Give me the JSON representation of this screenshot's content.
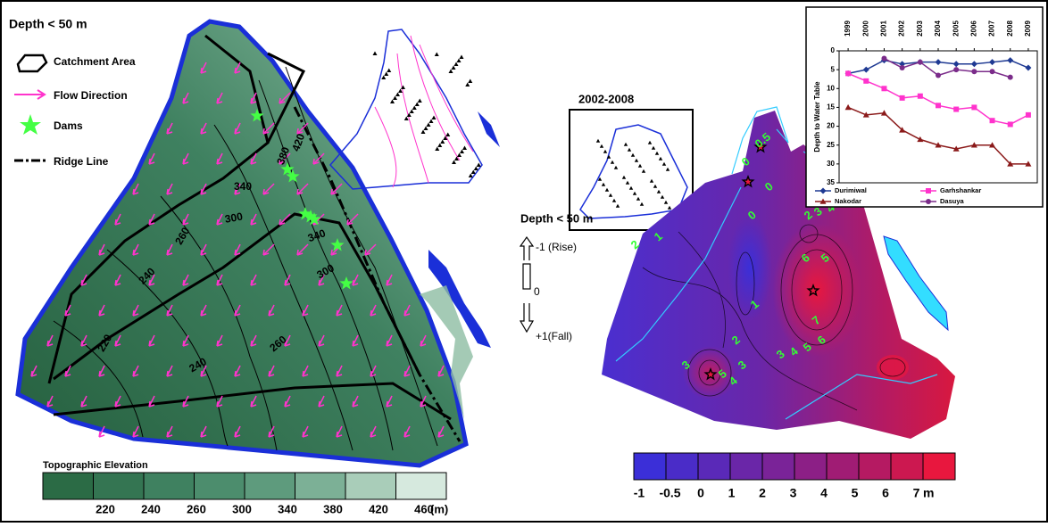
{
  "left_panel": {
    "title": "Depth < 50 m",
    "legend": [
      "Catchment Area",
      "Flow Direction",
      "Dams",
      "Ridge Line"
    ],
    "contour_labels": [
      "420",
      "380",
      "340",
      "300",
      "260",
      "240",
      "220",
      "240",
      "260",
      "300",
      "340"
    ],
    "colorbar": {
      "title": "Topographic Elevation",
      "labels": [
        "220",
        "240",
        "260",
        "300",
        "340",
        "380",
        "420",
        "460"
      ],
      "unit": "(m)",
      "colors": [
        "#2b6b45",
        "#347552",
        "#3f8160",
        "#4c8d6d",
        "#5e9b7d",
        "#7cb096",
        "#a9cdb9",
        "#d6e9de"
      ]
    }
  },
  "center": {
    "inset_title": "2002-2008",
    "depth_label": "Depth < 50 m",
    "rise": "-1 (Rise)",
    "zero": "0",
    "fall": "+1(Fall)"
  },
  "right_panel": {
    "contour_labels": [
      "0.5",
      "0",
      "0",
      "0",
      "2",
      "1",
      "1",
      "2",
      "3",
      "4",
      "6",
      "5",
      "7",
      "6",
      "5",
      "4",
      "3",
      "2",
      "3",
      "5",
      "3",
      "4"
    ],
    "colorbar": {
      "labels": [
        "-1",
        "-0.5",
        "0",
        "1",
        "2",
        "3",
        "4",
        "5",
        "6",
        "7"
      ],
      "unit": "m",
      "colors": [
        "#3b2fd8",
        "#4a2cc8",
        "#5a29b8",
        "#6a26a8",
        "#7a2398",
        "#8c1f86",
        "#a01c74",
        "#b51a62",
        "#cc1850",
        "#e8173e"
      ]
    }
  },
  "inset_chart": {
    "type": "line",
    "y_label": "Depth to Water Table",
    "y_inverted": true,
    "categories": [
      "1999",
      "2000",
      "2001",
      "2002",
      "2003",
      "2004",
      "2005",
      "2006",
      "2007",
      "2008",
      "2009"
    ],
    "ylim": [
      0,
      35
    ],
    "yticks": [
      0,
      5,
      10,
      15,
      20,
      25,
      30,
      35
    ],
    "series": [
      {
        "name": "Durimiwal",
        "color": "#1f3a93",
        "marker": "diamond",
        "values": [
          6,
          5,
          2.5,
          3.5,
          3,
          3,
          3.5,
          3.5,
          3,
          2.5,
          4.5
        ]
      },
      {
        "name": "Garhshankar",
        "color": "#ff33cc",
        "marker": "square",
        "values": [
          6,
          8,
          10,
          12.5,
          12,
          14.5,
          15.5,
          15,
          18.5,
          19.5,
          17
        ]
      },
      {
        "name": "Nakodar",
        "color": "#8b1a1a",
        "marker": "triangle",
        "values": [
          15,
          17,
          16.5,
          21,
          23.5,
          25,
          26,
          25,
          25,
          30,
          30
        ]
      },
      {
        "name": "Dasuya",
        "color": "#7b2c8a",
        "marker": "circle",
        "values": [
          null,
          null,
          2,
          4.5,
          3,
          6.5,
          5,
          5.5,
          5.5,
          7,
          null
        ]
      }
    ]
  }
}
